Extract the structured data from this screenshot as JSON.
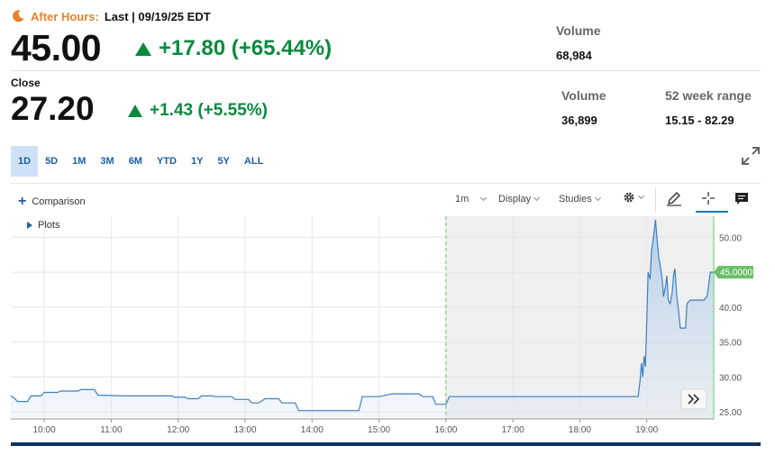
{
  "header": {
    "after_hours_label": "After Hours:",
    "last_label": "Last | 09/19/25 EDT",
    "price": "45.00",
    "change": "+17.80 (+65.44%)",
    "volume_label": "Volume",
    "volume_value": "68,984"
  },
  "close": {
    "label": "Close",
    "price": "27.20",
    "change": "+1.43 (+5.55%)",
    "volume_label": "Volume",
    "volume_value": "36,899",
    "range_label": "52 week range",
    "range_value": "15.15 - 82.29"
  },
  "ranges": {
    "items": [
      "1D",
      "5D",
      "1M",
      "3M",
      "6M",
      "YTD",
      "1Y",
      "5Y",
      "ALL"
    ],
    "active": "1D"
  },
  "toolbar": {
    "comparison_label": "Comparison",
    "interval_label": "1m",
    "display_label": "Display",
    "studies_label": "Studies",
    "icons": [
      "gear-icon",
      "pencil-icon",
      "crosshair-icon",
      "comment-icon"
    ]
  },
  "plots_label": "Plots",
  "colors": {
    "accent_orange": "#e8822a",
    "positive_green": "#0b8a3e",
    "link_blue": "#1a5fa6",
    "line_blue": "#3c7fc0",
    "current_price_tag": "#6abf69"
  },
  "chart_data": {
    "type": "area",
    "x_tick_labels": [
      "10:00",
      "11:00",
      "12:00",
      "13:00",
      "14:00",
      "15:00",
      "16:00",
      "17:00",
      "18:00",
      "19:00"
    ],
    "y_tick_labels": [
      "25.00",
      "30.00",
      "35.00",
      "40.00",
      "45.00",
      "50.00"
    ],
    "ylim": [
      24,
      53
    ],
    "xlim": [
      9.5,
      20.0
    ],
    "grid": true,
    "session_marker": "16:00",
    "current_price_label": "45.0000",
    "series": [
      {
        "x": [
          9.5,
          9.55,
          9.6,
          9.75,
          9.8,
          9.95,
          10.0,
          10.2,
          10.25,
          10.5,
          10.55,
          10.75,
          10.8,
          11.2,
          11.3,
          11.5,
          11.6,
          11.9,
          11.95,
          12.1,
          12.15,
          12.3,
          12.35,
          12.5,
          12.55,
          12.8,
          12.85,
          13.05,
          13.1,
          13.2,
          13.3,
          13.5,
          13.55,
          13.75,
          13.8,
          14.0,
          14.2,
          14.4,
          14.45,
          14.7,
          14.75,
          15.0,
          15.2,
          15.4,
          15.5,
          15.6,
          15.65,
          15.8,
          15.85,
          16.0,
          16.05,
          16.5,
          17.0,
          17.5,
          18.0,
          18.5,
          18.87,
          18.9,
          18.92,
          18.94,
          18.96,
          18.98,
          19.0,
          19.02,
          19.05,
          19.07,
          19.1,
          19.13,
          19.15,
          19.18,
          19.2,
          19.23,
          19.25,
          19.28,
          19.3,
          19.32,
          19.35,
          19.38,
          19.4,
          19.42,
          19.45,
          19.48,
          19.5,
          19.55,
          19.58,
          19.6,
          19.65,
          19.7,
          19.75,
          19.8,
          19.85,
          19.9,
          19.95,
          20.0
        ],
        "y": [
          27.3,
          27.0,
          26.5,
          26.5,
          27.3,
          27.3,
          27.8,
          27.8,
          28.0,
          28.0,
          28.2,
          28.2,
          27.4,
          27.3,
          27.3,
          27.3,
          27.3,
          27.3,
          27.1,
          27.1,
          26.9,
          26.9,
          27.3,
          27.3,
          27.2,
          27.2,
          26.8,
          26.8,
          26.3,
          26.3,
          26.9,
          26.9,
          26.3,
          26.3,
          25.2,
          25.2,
          25.2,
          25.2,
          25.2,
          25.2,
          27.2,
          27.2,
          27.6,
          27.6,
          27.6,
          27.6,
          27.2,
          27.2,
          26.1,
          26.1,
          27.2,
          27.2,
          27.2,
          27.2,
          27.2,
          27.2,
          27.2,
          29.5,
          32.0,
          30.0,
          33.0,
          31.5,
          38.0,
          45.0,
          44.0,
          48.0,
          50.0,
          52.5,
          50.0,
          47.0,
          46.0,
          44.0,
          41.5,
          43.0,
          44.5,
          41.0,
          40.5,
          42.0,
          44.5,
          45.5,
          41.5,
          39.0,
          37.0,
          37.0,
          37.0,
          40.5,
          41.0,
          41.0,
          41.0,
          41.0,
          41.0,
          41.5,
          45.0,
          45.0
        ]
      }
    ]
  }
}
